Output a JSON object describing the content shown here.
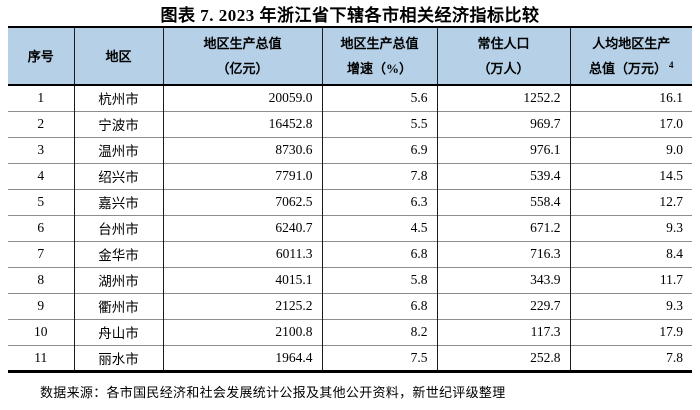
{
  "title": "图表 7. 2023 年浙江省下辖各市相关经济指标比较",
  "colors": {
    "header_bg": "#B5D0E7",
    "text": "#000000",
    "row_divider": "#8d8d8d",
    "rule": "#000000"
  },
  "table": {
    "columns": [
      {
        "line1": "序号",
        "line2": ""
      },
      {
        "line1": "地区",
        "line2": ""
      },
      {
        "line1": "地区生产总值",
        "line2": "（亿元）"
      },
      {
        "line1": "地区生产总值",
        "line2": "增速（%）"
      },
      {
        "line1": "常住人口",
        "line2": "（万人）"
      },
      {
        "line1": "人均地区生产",
        "line2": "总值（万元）",
        "footnote": "4"
      }
    ],
    "rows": [
      {
        "seq": "1",
        "region": "杭州市",
        "gdp": "20059.0",
        "growth": "5.6",
        "population": "1252.2",
        "per_capita": "16.1"
      },
      {
        "seq": "2",
        "region": "宁波市",
        "gdp": "16452.8",
        "growth": "5.5",
        "population": "969.7",
        "per_capita": "17.0"
      },
      {
        "seq": "3",
        "region": "温州市",
        "gdp": "8730.6",
        "growth": "6.9",
        "population": "976.1",
        "per_capita": "9.0"
      },
      {
        "seq": "4",
        "region": "绍兴市",
        "gdp": "7791.0",
        "growth": "7.8",
        "population": "539.4",
        "per_capita": "14.5"
      },
      {
        "seq": "5",
        "region": "嘉兴市",
        "gdp": "7062.5",
        "growth": "6.3",
        "population": "558.4",
        "per_capita": "12.7"
      },
      {
        "seq": "6",
        "region": "台州市",
        "gdp": "6240.7",
        "growth": "4.5",
        "population": "671.2",
        "per_capita": "9.3"
      },
      {
        "seq": "7",
        "region": "金华市",
        "gdp": "6011.3",
        "growth": "6.8",
        "population": "716.3",
        "per_capita": "8.4"
      },
      {
        "seq": "8",
        "region": "湖州市",
        "gdp": "4015.1",
        "growth": "5.8",
        "population": "343.9",
        "per_capita": "11.7"
      },
      {
        "seq": "9",
        "region": "衢州市",
        "gdp": "2125.2",
        "growth": "6.8",
        "population": "229.7",
        "per_capita": "9.3"
      },
      {
        "seq": "10",
        "region": "舟山市",
        "gdp": "2100.8",
        "growth": "8.2",
        "population": "117.3",
        "per_capita": "17.9"
      },
      {
        "seq": "11",
        "region": "丽水市",
        "gdp": "1964.4",
        "growth": "7.5",
        "population": "252.8",
        "per_capita": "7.8"
      }
    ]
  },
  "footer": {
    "source": "数据来源：各市国民经济和社会发展统计公报及其他公开资料，新世纪评级整理"
  }
}
